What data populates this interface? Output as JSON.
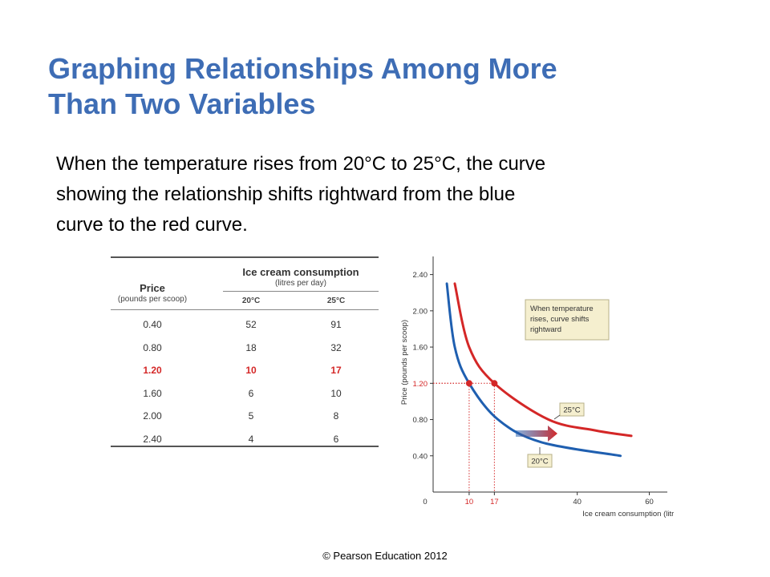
{
  "slide": {
    "title_line1": "Graphing Relationships Among More",
    "title_line2": "Than Two Variables",
    "body_line1": "When the temperature rises from 20°C to 25°C, the curve",
    "body_line2": "showing the relationship shifts rightward from the blue",
    "body_line3": "curve to the red curve.",
    "copyright": "© Pearson Education 2012"
  },
  "table": {
    "price_header": "Price",
    "price_sub": "(pounds per scoop)",
    "group_header": "Ice cream consumption",
    "group_sub": "(litres per day)",
    "col_20": "20°C",
    "col_25": "25°C",
    "rows": [
      {
        "price": "0.40",
        "c20": "52",
        "c25": "91"
      },
      {
        "price": "0.80",
        "c20": "18",
        "c25": "32"
      },
      {
        "price": "1.20",
        "c20": "10",
        "c25": "17"
      },
      {
        "price": "1.60",
        "c20": "6",
        "c25": "10"
      },
      {
        "price": "2.00",
        "c20": "5",
        "c25": "8"
      },
      {
        "price": "2.40",
        "c20": "4",
        "c25": "6"
      }
    ],
    "highlight_price": "1.20"
  },
  "chart_data": {
    "type": "line",
    "xlabel": "Ice cream consumption (litres per day)",
    "ylabel": "Price (pounds per scoop)",
    "xlim": [
      0,
      65
    ],
    "ylim": [
      0,
      2.6
    ],
    "x_ticks": [
      "0",
      "40",
      "60"
    ],
    "x_ticks_highlight": [
      "10",
      "17"
    ],
    "y_ticks": [
      "0.40",
      "0.80",
      "1.20",
      "1.60",
      "2.00",
      "2.40"
    ],
    "y_tick_highlight": "1.20",
    "series": [
      {
        "name": "20°C",
        "color": "#1f5fb0",
        "points": [
          [
            3.8,
            2.3
          ],
          [
            6,
            1.6
          ],
          [
            10,
            1.2
          ],
          [
            18,
            0.8
          ],
          [
            30,
            0.55
          ],
          [
            52,
            0.4
          ]
        ]
      },
      {
        "name": "25°C",
        "color": "#d42727",
        "points": [
          [
            6,
            2.3
          ],
          [
            10,
            1.6
          ],
          [
            17,
            1.2
          ],
          [
            32,
            0.8
          ],
          [
            45,
            0.68
          ],
          [
            55,
            0.62
          ]
        ]
      }
    ],
    "highlight_points": [
      {
        "x": 10,
        "y": 1.2,
        "color": "#d42727"
      },
      {
        "x": 17,
        "y": 1.2,
        "color": "#d42727"
      }
    ],
    "annotation": "When temperature rises, curve shifts rightward",
    "annotation_lines": [
      "When temperature",
      "rises, curve shifts",
      "rightward"
    ],
    "label_25": "25°C",
    "label_20": "20°C",
    "colors": {
      "blue": "#1f5fb0",
      "red": "#d42727",
      "box_fill": "#f5efcf",
      "box_stroke": "#b8b08a"
    }
  }
}
